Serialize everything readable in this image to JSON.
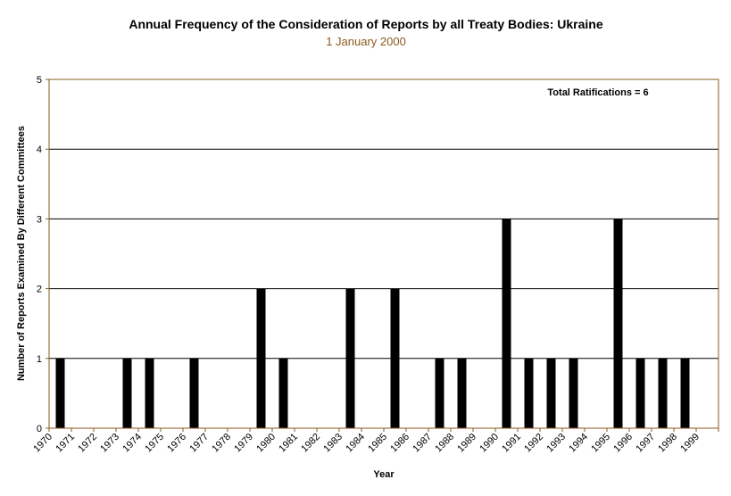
{
  "chart_data": {
    "type": "bar",
    "title": "Annual Frequency of the Consideration of Reports by all Treaty Bodies: Ukraine",
    "subtitle": "1 January 2000",
    "xlabel": "Year",
    "ylabel": "Number of Reports Examined By Different Committees",
    "ylim": [
      0,
      5
    ],
    "yticks": [
      "0",
      "1",
      "2",
      "3",
      "4",
      "5"
    ],
    "grid": true,
    "annotation": "Total Ratifications = 6",
    "categories": [
      "1970",
      "1971",
      "1972",
      "1973",
      "1974",
      "1975",
      "1976",
      "1977",
      "1978",
      "1979",
      "1980",
      "1981",
      "1982",
      "1983",
      "1984",
      "1985",
      "1986",
      "1987",
      "1988",
      "1989",
      "1990",
      "1991",
      "1992",
      "1993",
      "1994",
      "1995",
      "1996",
      "1997",
      "1998",
      "1999"
    ],
    "values": [
      1,
      0,
      0,
      1,
      1,
      0,
      1,
      0,
      0,
      2,
      1,
      0,
      0,
      2,
      0,
      2,
      0,
      1,
      1,
      0,
      3,
      1,
      1,
      1,
      0,
      3,
      1,
      1,
      1,
      0
    ],
    "colors": {
      "bar": "#000000",
      "axis": "#8a5a1e",
      "grid": "#000000",
      "background": "#ffffff"
    }
  }
}
